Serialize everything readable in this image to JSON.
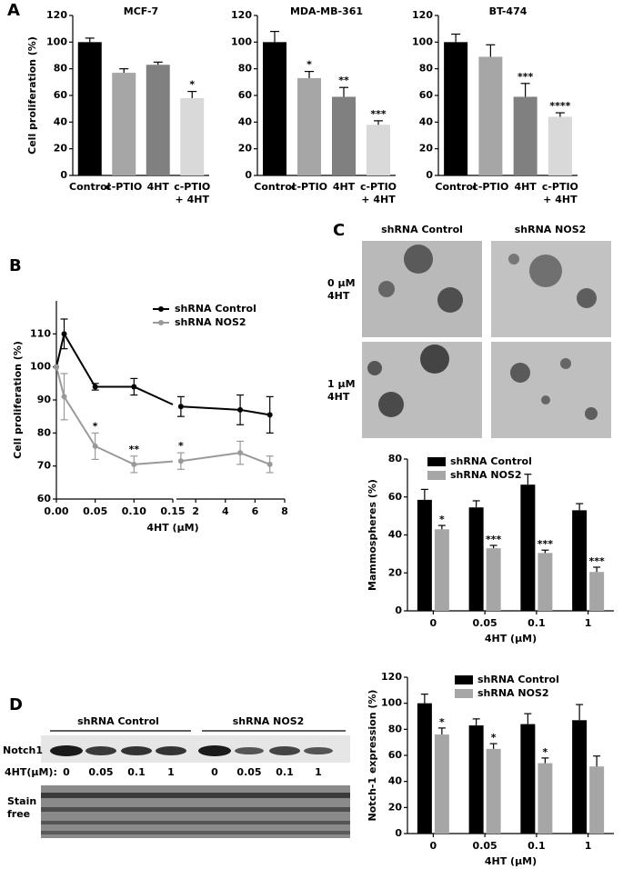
{
  "panel_labels": [
    "A",
    "B",
    "C",
    "D"
  ],
  "chart_data": [
    {
      "type": "bar",
      "title": "MCF-7",
      "y_label": "Cell proliferation (%)",
      "categories": [
        "Control",
        "c-PTIO",
        "4HT",
        "c-PTIO\n+ 4HT"
      ],
      "values": [
        100,
        77,
        83,
        58
      ],
      "errors": [
        3,
        3,
        2,
        5
      ],
      "annotations": [
        null,
        null,
        null,
        "*"
      ],
      "colors": [
        "#000000",
        "#a6a6a6",
        "#808080",
        "#d9d9d9"
      ],
      "ylim": [
        0,
        120
      ],
      "yticks": [
        0,
        20,
        40,
        60,
        80,
        100,
        120
      ]
    },
    {
      "type": "bar",
      "title": "MDA-MB-361",
      "categories": [
        "Control",
        "c-PTIO",
        "4HT",
        "c-PTIO\n+ 4HT"
      ],
      "values": [
        100,
        73,
        59,
        38
      ],
      "errors": [
        8,
        5,
        7,
        3
      ],
      "annotations": [
        null,
        "*",
        "**",
        "***"
      ],
      "colors": [
        "#000000",
        "#a6a6a6",
        "#808080",
        "#d9d9d9"
      ],
      "ylim": [
        0,
        120
      ],
      "yticks": [
        0,
        20,
        40,
        60,
        80,
        100,
        120
      ]
    },
    {
      "type": "bar",
      "title": "BT-474",
      "categories": [
        "Control",
        "c-PTIO",
        "4HT",
        "c-PTIO\n+ 4HT"
      ],
      "values": [
        100,
        89,
        59,
        44
      ],
      "errors": [
        6,
        9,
        10,
        3
      ],
      "annotations": [
        null,
        null,
        "***",
        "****"
      ],
      "colors": [
        "#000000",
        "#a6a6a6",
        "#808080",
        "#d9d9d9"
      ],
      "ylim": [
        0,
        120
      ],
      "yticks": [
        0,
        20,
        40,
        60,
        80,
        100,
        120
      ]
    },
    {
      "type": "line",
      "x_label": "4HT (µM)",
      "y_label": "Cell proliferation (%)",
      "x": [
        0,
        0.01,
        0.05,
        0.1,
        1,
        5,
        7
      ],
      "x_segments": [
        {
          "xlim": [
            0,
            0.15
          ],
          "xticks": [
            {
              "value": 0,
              "label": "0.00"
            },
            0.05,
            {
              "value": 0.1,
              "label": "0.10"
            },
            0.15
          ]
        },
        {
          "xlim": [
            0.7,
            8
          ],
          "xticks": [
            2,
            4,
            6,
            8
          ]
        }
      ],
      "ylim": [
        60,
        120
      ],
      "yticks": [
        60,
        70,
        80,
        90,
        100,
        110
      ],
      "series": [
        {
          "name": "shRNA Control",
          "color": "#000000",
          "values": [
            100,
            110,
            94,
            94,
            88,
            87,
            85.5
          ],
          "errors": [
            null,
            4.5,
            1,
            2.5,
            3,
            4.5,
            5.5
          ]
        },
        {
          "name": "shRNA NOS2",
          "color": "#999999",
          "values": [
            100,
            91,
            76,
            70.5,
            71.5,
            74,
            70.5
          ],
          "errors": [
            null,
            7,
            4,
            2.5,
            2.5,
            3.5,
            2.5
          ],
          "annotations": [
            null,
            null,
            "*",
            "**",
            "*",
            null,
            null
          ]
        }
      ]
    },
    {
      "type": "grouped_bar",
      "x_label": "4HT (µM)",
      "y_label": "Mammospheres (%)",
      "categories": [
        "0",
        "0.05",
        "0.1",
        "1"
      ],
      "ylim": [
        0,
        80
      ],
      "yticks": [
        0,
        20,
        40,
        60,
        80
      ],
      "series": [
        {
          "name": "shRNA Control",
          "color": "#000000",
          "values": [
            58.5,
            54.5,
            66.5,
            53
          ],
          "errors": [
            5.5,
            3.5,
            5.5,
            3.5
          ]
        },
        {
          "name": "shRNA NOS2",
          "color": "#a6a6a6",
          "values": [
            43,
            33,
            30.5,
            20.5
          ],
          "errors": [
            2,
            1.5,
            1.5,
            2.5
          ],
          "annotations": [
            "*",
            "***",
            "***",
            "***"
          ]
        }
      ]
    },
    {
      "type": "grouped_bar",
      "x_label": "4HT (µM)",
      "y_label": "Notch-1 expression (%)",
      "categories": [
        "0",
        "0.05",
        "0.1",
        "1"
      ],
      "ylim": [
        0,
        120
      ],
      "yticks": [
        0,
        20,
        40,
        60,
        80,
        100,
        120
      ],
      "series": [
        {
          "name": "shRNA Control",
          "color": "#000000",
          "values": [
            100,
            83,
            84,
            87
          ],
          "errors": [
            7,
            5,
            8,
            12
          ]
        },
        {
          "name": "shRNA NOS2",
          "color": "#a6a6a6",
          "values": [
            76,
            65,
            54,
            51.5
          ],
          "errors": [
            5,
            4,
            4,
            8
          ],
          "annotations": [
            "*",
            "*",
            "*",
            null
          ]
        }
      ]
    }
  ],
  "panel_c": {
    "column_labels": [
      "shRNA  Control",
      "shRNA NOS2"
    ],
    "row_labels": [
      "0 µM\n4HT",
      "1 µM\n4HT"
    ]
  },
  "panel_d": {
    "group_labels": [
      "shRNA  Control",
      "shRNA NOS2"
    ],
    "row_labels": [
      "Notch1",
      "Stain\nfree"
    ],
    "dose_label": "4HT(µM):",
    "lanes": [
      "0",
      "0.05",
      "0.1",
      "1",
      "0",
      "0.05",
      "0.1",
      "1"
    ]
  }
}
